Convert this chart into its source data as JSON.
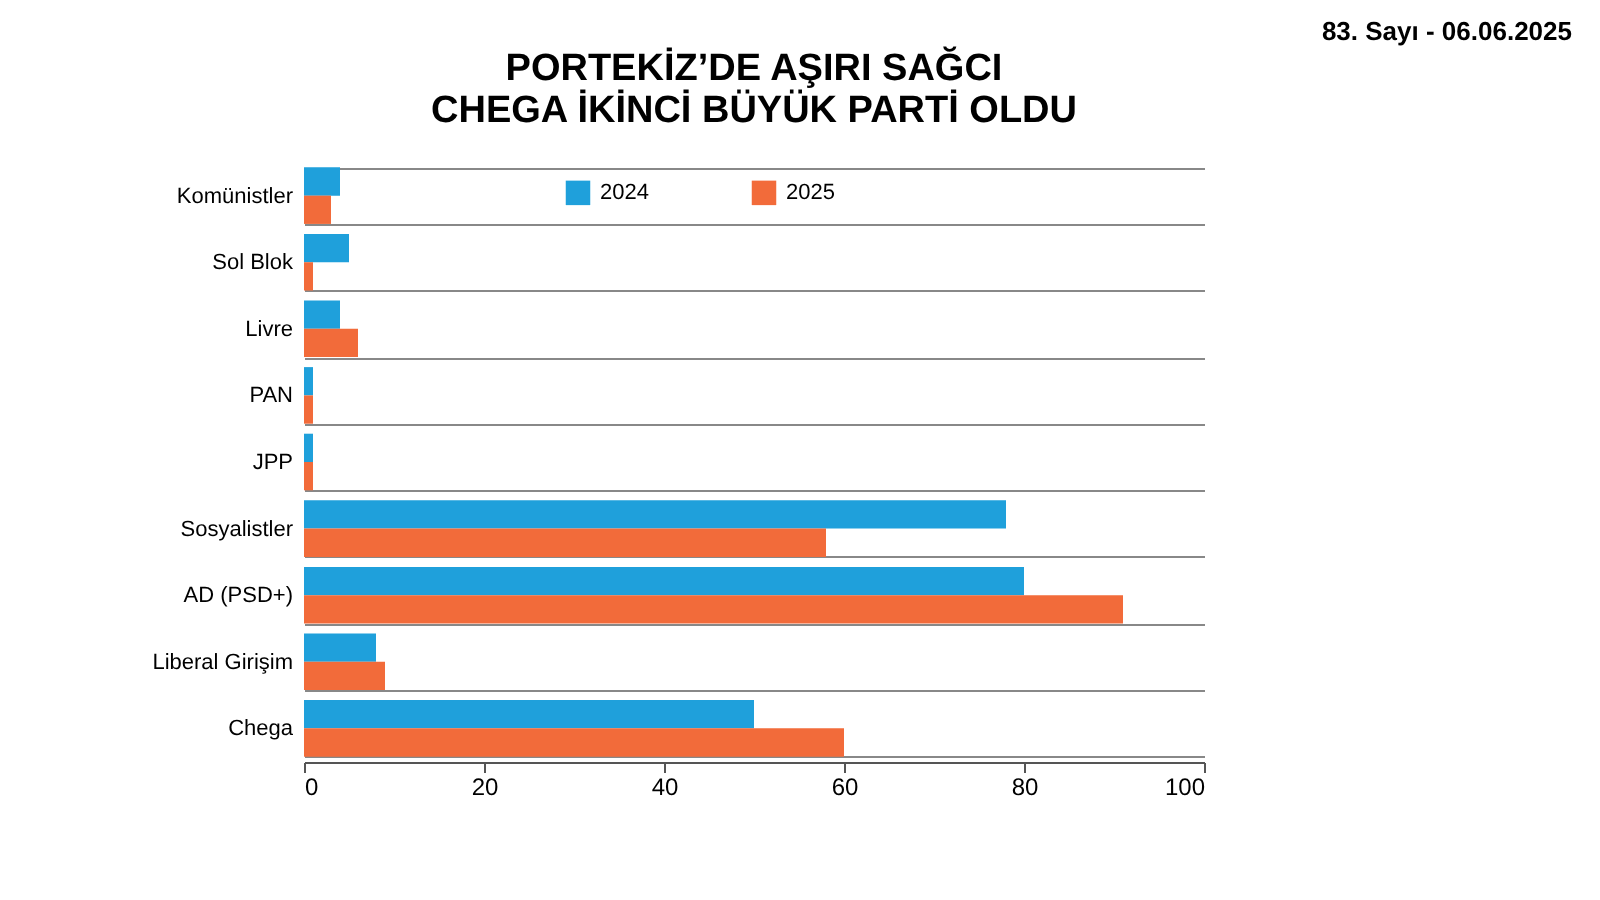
{
  "chart_data": {
    "type": "bar",
    "orientation": "horizontal",
    "title": "PORTEKİZ’DE AŞIRI SAĞCI CHEGA İKİNCİ BÜYÜK PARTİ OLDU",
    "categories": [
      "Komünistler",
      "Sol Blok",
      "Livre",
      "PAN",
      "JPP",
      "Sosyalistler",
      "AD (PSD+)",
      "Liberal Girişim",
      "Chega"
    ],
    "series": [
      {
        "name": "2024",
        "color": "#1fa0db",
        "values": [
          4,
          5,
          4,
          1,
          1,
          78,
          80,
          8,
          50
        ]
      },
      {
        "name": "2025",
        "color": "#f26b3a",
        "values": [
          3,
          1,
          6,
          1,
          1,
          58,
          91,
          9,
          60
        ]
      }
    ],
    "xlim": [
      0,
      100
    ],
    "xticks": [
      0,
      20,
      40,
      60,
      80,
      100
    ],
    "grid": "y",
    "legend": "top",
    "annotations": [
      "83. Sayı - 06.06.2025"
    ]
  }
}
